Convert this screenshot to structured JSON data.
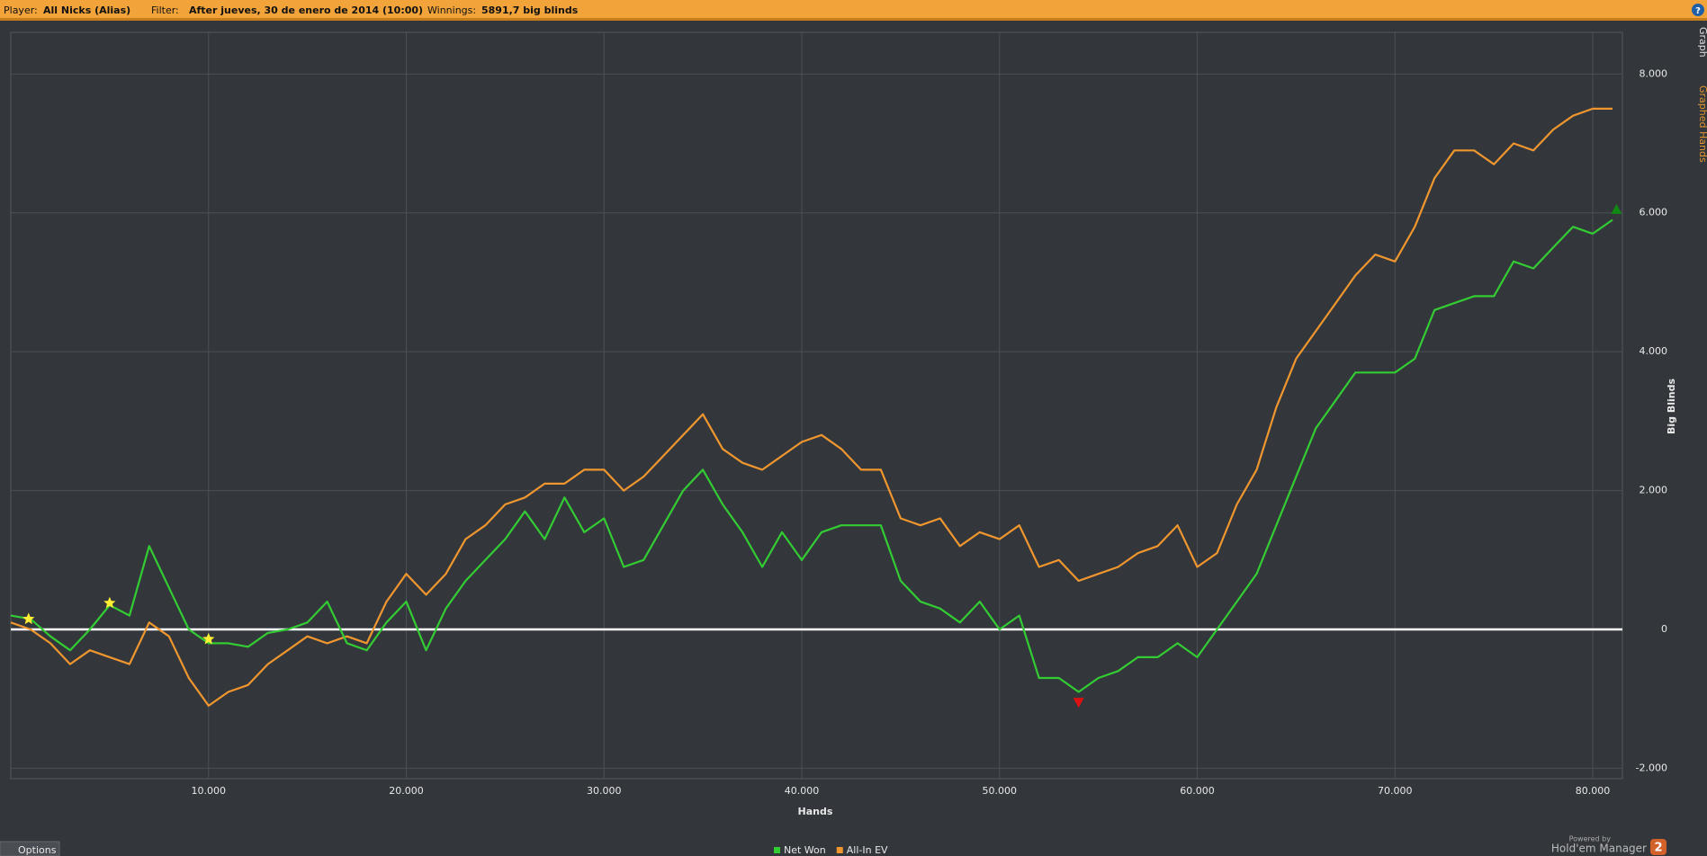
{
  "header": {
    "player_label": "Player:",
    "player": "All Nicks (Alias)",
    "filter_label": "Filter:",
    "filter": "After jueves, 30 de enero de 2014 (10:00)",
    "winnings_label": "Winnings:",
    "winnings": "5891,7 big blinds",
    "help": "?"
  },
  "side_tabs": [
    "Graph",
    "Graphed Hands"
  ],
  "footer": {
    "options": "Options",
    "powered_by": "Powered by",
    "brand": "Hold'em Manager",
    "badge": "2"
  },
  "chart_data": {
    "type": "line",
    "x_label": "Hands",
    "y_label": "Big Blinds",
    "xlim": [
      0,
      81500
    ],
    "ylim": [
      -2150,
      8600
    ],
    "xticks": [
      {
        "value": 10000,
        "label": "10.000"
      },
      {
        "value": 20000,
        "label": "20.000"
      },
      {
        "value": 30000,
        "label": "30.000"
      },
      {
        "value": 40000,
        "label": "40.000"
      },
      {
        "value": 50000,
        "label": "50.000"
      },
      {
        "value": 60000,
        "label": "60.000"
      },
      {
        "value": 70000,
        "label": "70.000"
      },
      {
        "value": 80000,
        "label": "80.000"
      }
    ],
    "yticks": [
      {
        "value": -2000,
        "label": "-2.000"
      },
      0,
      {
        "value": 2000,
        "label": "2.000"
      },
      {
        "value": 4000,
        "label": "4.000"
      },
      {
        "value": 6000,
        "label": "6.000"
      },
      {
        "value": 8000,
        "label": "8.000"
      }
    ],
    "grid": true,
    "zero_line_color": "#ffffff",
    "x": [
      0,
      1000,
      2000,
      3000,
      4000,
      5000,
      6000,
      7000,
      8000,
      9000,
      10000,
      11000,
      12000,
      13000,
      14000,
      15000,
      16000,
      17000,
      18000,
      19000,
      20000,
      21000,
      22000,
      23000,
      24000,
      25000,
      26000,
      27000,
      28000,
      29000,
      30000,
      31000,
      32000,
      33000,
      34000,
      35000,
      36000,
      37000,
      38000,
      39000,
      40000,
      41000,
      42000,
      43000,
      44000,
      45000,
      46000,
      47000,
      48000,
      49000,
      50000,
      51000,
      52000,
      53000,
      54000,
      55000,
      56000,
      57000,
      58000,
      59000,
      60000,
      61000,
      62000,
      63000,
      64000,
      65000,
      66000,
      67000,
      68000,
      69000,
      70000,
      71000,
      72000,
      73000,
      74000,
      75000,
      76000,
      77000,
      78000,
      79000,
      80000,
      81000
    ],
    "series": [
      {
        "name": "Net Won",
        "color": "#33cc33",
        "values": [
          200,
          150,
          -100,
          -300,
          0,
          350,
          200,
          1200,
          600,
          0,
          -200,
          -200,
          -250,
          -50,
          0,
          100,
          400,
          -200,
          -300,
          100,
          400,
          -300,
          300,
          700,
          1000,
          1300,
          1700,
          1300,
          1900,
          1400,
          1600,
          900,
          1000,
          1500,
          2000,
          2300,
          1800,
          1400,
          900,
          1400,
          1000,
          1400,
          1500,
          1500,
          1500,
          700,
          400,
          300,
          100,
          400,
          0,
          200,
          -700,
          -700,
          -900,
          -700,
          -600,
          -400,
          -400,
          -200,
          -400,
          0,
          400,
          800,
          1500,
          2200,
          2900,
          3300,
          3700,
          3700,
          3700,
          3900,
          4600,
          4700,
          4800,
          4800,
          5300,
          5200,
          5500,
          5800,
          5700,
          5900
        ]
      },
      {
        "name": "All-In EV",
        "color": "#f0962e",
        "values": [
          100,
          0,
          -200,
          -500,
          -300,
          -400,
          -500,
          100,
          -100,
          -700,
          -1100,
          -900,
          -800,
          -500,
          -300,
          -100,
          -200,
          -100,
          -200,
          400,
          800,
          500,
          800,
          1300,
          1500,
          1800,
          1900,
          2100,
          2100,
          2300,
          2300,
          2000,
          2200,
          2500,
          2800,
          3100,
          2600,
          2400,
          2300,
          2500,
          2700,
          2800,
          2600,
          2300,
          2300,
          1600,
          1500,
          1600,
          1200,
          1400,
          1300,
          1500,
          900,
          1000,
          700,
          800,
          900,
          1100,
          1200,
          1500,
          900,
          1100,
          1800,
          2300,
          3200,
          3900,
          4300,
          4700,
          5100,
          5400,
          5300,
          5800,
          6500,
          6900,
          6900,
          6700,
          7000,
          6900,
          7200,
          7400,
          7500,
          7500
        ]
      }
    ],
    "markers": [
      {
        "x": 900,
        "y": 150,
        "shape": "star",
        "color": "#ffee33"
      },
      {
        "x": 5000,
        "y": 380,
        "shape": "star",
        "color": "#ffee33"
      },
      {
        "x": 10000,
        "y": -140,
        "shape": "star",
        "color": "#ffee33"
      },
      {
        "x": 54000,
        "y": -1050,
        "shape": "down",
        "color": "#dd1111"
      },
      {
        "x": 81200,
        "y": 6050,
        "shape": "up",
        "color": "#118811"
      }
    ],
    "legend": "bottom"
  }
}
